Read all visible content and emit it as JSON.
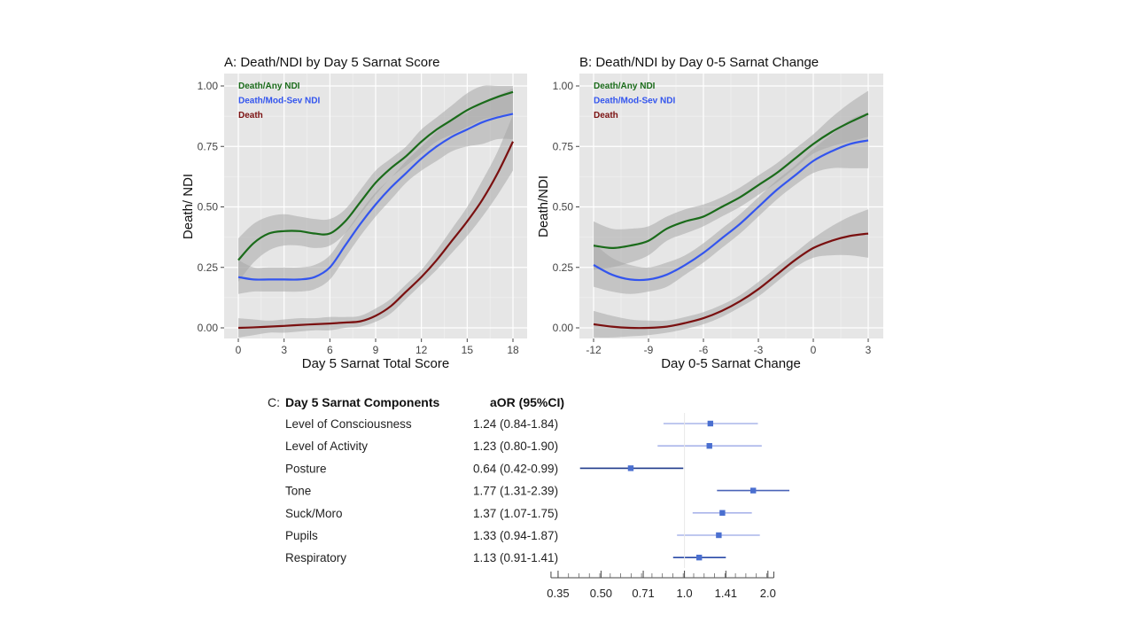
{
  "chart_data": [
    {
      "type": "line",
      "title": "A: Death/NDI by Day 5 Sarnat Score",
      "xlabel": "Day 5 Sarnat Total Score",
      "ylabel": "Death/ NDI",
      "xlim": [
        0,
        18
      ],
      "ylim": [
        0,
        1
      ],
      "x_ticks": [
        "0",
        "3",
        "6",
        "9",
        "12",
        "15",
        "18"
      ],
      "y_ticks": [
        "0.00",
        "0.25",
        "0.50",
        "0.75",
        "1.00"
      ],
      "grid": true,
      "legend_position": "top-left",
      "x": [
        0,
        1,
        2,
        3,
        4,
        5,
        6,
        7,
        8,
        9,
        10,
        11,
        12,
        13,
        14,
        15,
        16,
        17,
        18
      ],
      "series": [
        {
          "name": "Death/Any NDI",
          "color": "#1a6b1a",
          "values": [
            0.28,
            0.35,
            0.39,
            0.4,
            0.4,
            0.39,
            0.39,
            0.44,
            0.52,
            0.6,
            0.66,
            0.71,
            0.77,
            0.82,
            0.86,
            0.9,
            0.93,
            0.955,
            0.975
          ],
          "ci_lower": [
            0.19,
            0.27,
            0.32,
            0.34,
            0.34,
            0.33,
            0.34,
            0.39,
            0.47,
            0.55,
            0.62,
            0.67,
            0.72,
            0.77,
            0.8,
            0.83,
            0.86,
            0.875,
            0.89
          ],
          "ci_upper": [
            0.37,
            0.43,
            0.46,
            0.47,
            0.46,
            0.45,
            0.45,
            0.49,
            0.57,
            0.65,
            0.7,
            0.75,
            0.82,
            0.87,
            0.92,
            0.97,
            1.0,
            1.0,
            1.0
          ]
        },
        {
          "name": "Death/Mod-Sev NDI",
          "color": "#3355ee",
          "values": [
            0.21,
            0.2,
            0.2,
            0.2,
            0.2,
            0.21,
            0.25,
            0.34,
            0.43,
            0.51,
            0.58,
            0.64,
            0.7,
            0.75,
            0.79,
            0.82,
            0.85,
            0.87,
            0.885
          ],
          "ci_lower": [
            0.14,
            0.15,
            0.15,
            0.15,
            0.15,
            0.16,
            0.2,
            0.29,
            0.38,
            0.46,
            0.53,
            0.6,
            0.65,
            0.69,
            0.73,
            0.75,
            0.76,
            0.78,
            0.78
          ],
          "ci_upper": [
            0.28,
            0.25,
            0.25,
            0.25,
            0.25,
            0.26,
            0.3,
            0.39,
            0.48,
            0.56,
            0.62,
            0.69,
            0.75,
            0.81,
            0.86,
            0.89,
            0.93,
            0.96,
            0.99
          ]
        },
        {
          "name": "Death",
          "color": "#7a1010",
          "values": [
            0.0,
            0.002,
            0.005,
            0.008,
            0.012,
            0.015,
            0.018,
            0.022,
            0.027,
            0.05,
            0.09,
            0.15,
            0.21,
            0.28,
            0.36,
            0.44,
            0.53,
            0.64,
            0.77
          ],
          "ci_lower": [
            -0.04,
            -0.03,
            -0.02,
            -0.02,
            -0.015,
            -0.01,
            -0.01,
            0.0,
            0.005,
            0.025,
            0.06,
            0.12,
            0.18,
            0.24,
            0.31,
            0.38,
            0.46,
            0.55,
            0.65
          ],
          "ci_upper": [
            0.04,
            0.035,
            0.03,
            0.035,
            0.04,
            0.04,
            0.045,
            0.045,
            0.05,
            0.08,
            0.12,
            0.18,
            0.24,
            0.32,
            0.41,
            0.5,
            0.61,
            0.73,
            0.88
          ]
        }
      ]
    },
    {
      "type": "line",
      "title": "B: Death/NDI by Day 0-5 Sarnat Change",
      "xlabel": "Day 0-5 Sarnat Change",
      "ylabel": "Death/NDI",
      "xlim": [
        -12,
        3
      ],
      "ylim": [
        0,
        1
      ],
      "x_ticks": [
        "-12",
        "-9",
        "-6",
        "-3",
        "0",
        "3"
      ],
      "y_ticks": [
        "0.00",
        "0.25",
        "0.50",
        "0.75",
        "1.00"
      ],
      "grid": true,
      "legend_position": "top-left",
      "x": [
        -12,
        -11,
        -10,
        -9,
        -8,
        -7,
        -6,
        -5,
        -4,
        -3,
        -2,
        -1,
        0,
        1,
        2,
        3
      ],
      "series": [
        {
          "name": "Death/Any NDI",
          "color": "#1a6b1a",
          "values": [
            0.34,
            0.33,
            0.34,
            0.36,
            0.41,
            0.44,
            0.46,
            0.5,
            0.54,
            0.59,
            0.64,
            0.7,
            0.76,
            0.81,
            0.85,
            0.885
          ],
          "ci_lower": [
            0.24,
            0.25,
            0.27,
            0.3,
            0.36,
            0.39,
            0.42,
            0.46,
            0.5,
            0.55,
            0.6,
            0.66,
            0.72,
            0.75,
            0.77,
            0.79
          ],
          "ci_upper": [
            0.44,
            0.41,
            0.41,
            0.42,
            0.46,
            0.49,
            0.51,
            0.54,
            0.58,
            0.63,
            0.68,
            0.74,
            0.8,
            0.87,
            0.93,
            0.98
          ]
        },
        {
          "name": "Death/Mod-Sev NDI",
          "color": "#3355ee",
          "values": [
            0.26,
            0.22,
            0.2,
            0.2,
            0.22,
            0.26,
            0.31,
            0.37,
            0.43,
            0.5,
            0.57,
            0.63,
            0.69,
            0.73,
            0.76,
            0.775
          ],
          "ci_lower": [
            0.17,
            0.15,
            0.14,
            0.15,
            0.17,
            0.22,
            0.27,
            0.33,
            0.39,
            0.46,
            0.53,
            0.59,
            0.64,
            0.66,
            0.66,
            0.66
          ],
          "ci_upper": [
            0.35,
            0.29,
            0.26,
            0.25,
            0.27,
            0.3,
            0.35,
            0.41,
            0.47,
            0.54,
            0.61,
            0.67,
            0.74,
            0.8,
            0.86,
            0.89
          ]
        },
        {
          "name": "Death",
          "color": "#7a1010",
          "values": [
            0.015,
            0.005,
            0.0,
            0.0,
            0.005,
            0.02,
            0.04,
            0.07,
            0.11,
            0.16,
            0.22,
            0.28,
            0.33,
            0.36,
            0.38,
            0.39
          ],
          "ci_lower": [
            -0.04,
            -0.04,
            -0.035,
            -0.03,
            -0.02,
            -0.005,
            0.015,
            0.045,
            0.085,
            0.13,
            0.19,
            0.25,
            0.29,
            0.3,
            0.3,
            0.29
          ],
          "ci_upper": [
            0.07,
            0.05,
            0.035,
            0.03,
            0.03,
            0.045,
            0.065,
            0.095,
            0.135,
            0.19,
            0.25,
            0.31,
            0.37,
            0.42,
            0.46,
            0.49
          ]
        }
      ]
    },
    {
      "type": "forest",
      "title": "Day 5 Sarnat Components",
      "panel_label": "C:",
      "column_header": "aOR (95%CI)",
      "x_scale": "log",
      "x_ticks": [
        "0.35",
        "0.50",
        "0.71",
        "1.0",
        "1.41",
        "2.0"
      ],
      "reference_line": 1.0,
      "rows": [
        {
          "label": "Level of Consciousness",
          "text": "1.24 (0.84-1.84)",
          "or": 1.24,
          "lo": 0.84,
          "hi": 1.84,
          "ci_color": "#aab5ea"
        },
        {
          "label": "Level of Activity",
          "text": "1.23 (0.80-1.90)",
          "or": 1.23,
          "lo": 0.8,
          "hi": 1.9,
          "ci_color": "#aab5ea"
        },
        {
          "label": "Posture",
          "text": "0.64 (0.42-0.99)",
          "or": 0.64,
          "lo": 0.42,
          "hi": 0.99,
          "ci_color": "#1f3a8a"
        },
        {
          "label": "Tone",
          "text": "1.77 (1.31-2.39)",
          "or": 1.77,
          "lo": 1.31,
          "hi": 2.39,
          "ci_color": "#4a63b8"
        },
        {
          "label": "Suck/Moro",
          "text": "1.37 (1.07-1.75)",
          "or": 1.37,
          "lo": 1.07,
          "hi": 1.75,
          "ci_color": "#aab5ea"
        },
        {
          "label": "Pupils",
          "text": "1.33 (0.94-1.87)",
          "or": 1.33,
          "lo": 0.94,
          "hi": 1.87,
          "ci_color": "#aab5ea"
        },
        {
          "label": "Respiratory",
          "text": "1.13 (0.91-1.41)",
          "or": 1.13,
          "lo": 0.91,
          "hi": 1.41,
          "ci_color": "#2b4aa8"
        }
      ]
    }
  ],
  "colors": {
    "panel_bg": "#e6e6e6",
    "grid": "#ffffff",
    "ci_band": "#a8a8a8",
    "marker": "#4a6fd0"
  }
}
